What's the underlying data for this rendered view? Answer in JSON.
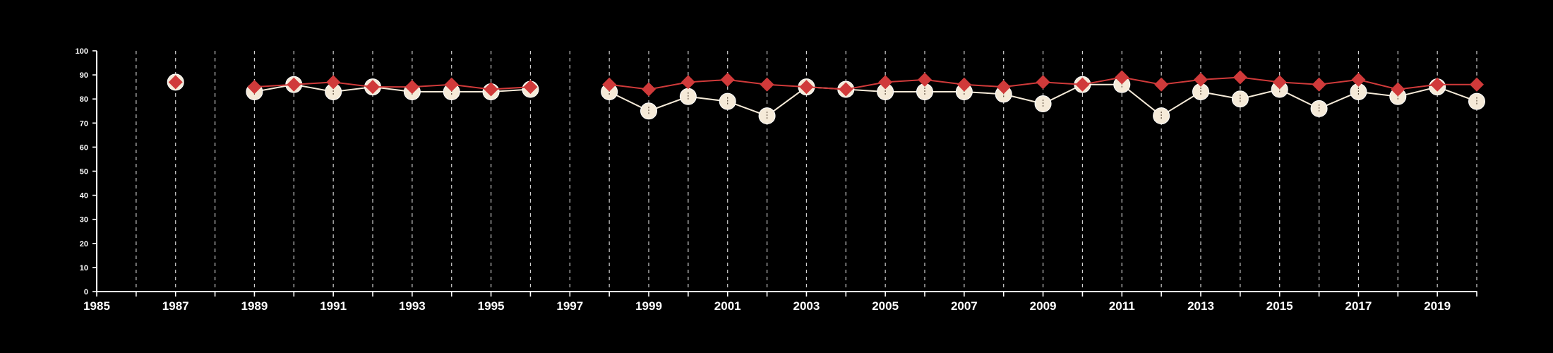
{
  "chart_data": {
    "type": "line",
    "title": "",
    "xlabel": "",
    "ylabel": "",
    "xlim": [
      1985,
      2020
    ],
    "ylim": [
      0,
      100
    ],
    "y_ticks": [
      0,
      10,
      20,
      30,
      40,
      50,
      60,
      70,
      80,
      90,
      100
    ],
    "x_tick_labels": [
      "1985",
      "1987",
      "1989",
      "1991",
      "1993",
      "1995",
      "1997",
      "1999",
      "2001",
      "2003",
      "2005",
      "2007",
      "2009",
      "2011",
      "2013",
      "2015",
      "2017",
      "2019"
    ],
    "grid": "vertical dashed lines at every year",
    "legend": "none",
    "series": [
      {
        "marker": "circle",
        "color": "#f5ead8",
        "points": [
          {
            "x": 1987,
            "y": 87
          },
          {
            "x": 1989,
            "y": 83
          },
          {
            "x": 1990,
            "y": 86
          },
          {
            "x": 1991,
            "y": 83
          },
          {
            "x": 1992,
            "y": 85
          },
          {
            "x": 1993,
            "y": 83
          },
          {
            "x": 1994,
            "y": 83
          },
          {
            "x": 1995,
            "y": 83
          },
          {
            "x": 1996,
            "y": 84
          },
          {
            "x": 1998,
            "y": 83
          },
          {
            "x": 1999,
            "y": 75
          },
          {
            "x": 2000,
            "y": 81
          },
          {
            "x": 2001,
            "y": 79
          },
          {
            "x": 2002,
            "y": 73
          },
          {
            "x": 2003,
            "y": 85
          },
          {
            "x": 2004,
            "y": 84
          },
          {
            "x": 2005,
            "y": 83
          },
          {
            "x": 2006,
            "y": 83
          },
          {
            "x": 2007,
            "y": 83
          },
          {
            "x": 2008,
            "y": 82
          },
          {
            "x": 2009,
            "y": 78
          },
          {
            "x": 2010,
            "y": 86
          },
          {
            "x": 2011,
            "y": 86
          },
          {
            "x": 2012,
            "y": 73
          },
          {
            "x": 2013,
            "y": 83
          },
          {
            "x": 2014,
            "y": 80
          },
          {
            "x": 2015,
            "y": 84
          },
          {
            "x": 2016,
            "y": 76
          },
          {
            "x": 2017,
            "y": 83
          },
          {
            "x": 2018,
            "y": 81
          },
          {
            "x": 2019,
            "y": 85
          },
          {
            "x": 2020,
            "y": 79
          }
        ]
      },
      {
        "marker": "diamond",
        "color": "#d03a3a",
        "points": [
          {
            "x": 1987,
            "y": 87
          },
          {
            "x": 1989,
            "y": 85
          },
          {
            "x": 1990,
            "y": 86
          },
          {
            "x": 1991,
            "y": 87
          },
          {
            "x": 1992,
            "y": 85
          },
          {
            "x": 1993,
            "y": 85
          },
          {
            "x": 1994,
            "y": 86
          },
          {
            "x": 1995,
            "y": 84
          },
          {
            "x": 1996,
            "y": 85
          },
          {
            "x": 1998,
            "y": 86
          },
          {
            "x": 1999,
            "y": 84
          },
          {
            "x": 2000,
            "y": 87
          },
          {
            "x": 2001,
            "y": 88
          },
          {
            "x": 2002,
            "y": 86
          },
          {
            "x": 2003,
            "y": 85
          },
          {
            "x": 2004,
            "y": 84
          },
          {
            "x": 2005,
            "y": 87
          },
          {
            "x": 2006,
            "y": 88
          },
          {
            "x": 2007,
            "y": 86
          },
          {
            "x": 2008,
            "y": 85
          },
          {
            "x": 2009,
            "y": 87
          },
          {
            "x": 2010,
            "y": 86
          },
          {
            "x": 2011,
            "y": 89
          },
          {
            "x": 2012,
            "y": 86
          },
          {
            "x": 2013,
            "y": 88
          },
          {
            "x": 2014,
            "y": 89
          },
          {
            "x": 2015,
            "y": 87
          },
          {
            "x": 2016,
            "y": 86
          },
          {
            "x": 2017,
            "y": 88
          },
          {
            "x": 2018,
            "y": 84
          },
          {
            "x": 2019,
            "y": 86
          },
          {
            "x": 2020,
            "y": 86
          }
        ]
      }
    ]
  }
}
